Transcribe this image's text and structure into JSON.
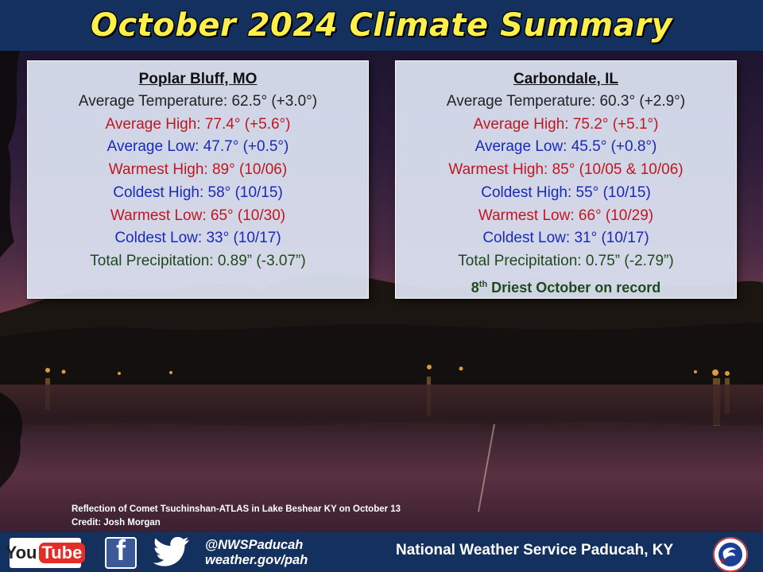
{
  "header": {
    "title": "October 2024 Climate Summary"
  },
  "left_panel": {
    "city": "Poplar Bluff, MO",
    "rows": [
      "Average Temperature: 62.5° (+3.0°)",
      "Average High: 77.4° (+5.6°)",
      "Average Low: 47.7° (+0.5°)",
      "Warmest High: 89° (10/06)",
      "Coldest High: 58° (10/15)",
      "Warmest  Low: 65° (10/30)",
      "Coldest Low: 33° (10/17)",
      "Total Precipitation: 0.89” (-3.07”)"
    ]
  },
  "right_panel": {
    "city": "Carbondale, IL",
    "rows": [
      "Average Temperature: 60.3° (+2.9°)",
      "Average High: 75.2° (+5.1°)",
      "Average Low: 45.5° (+0.8°)",
      "Warmest High: 85° (10/05 & 10/06)",
      "Coldest High: 55° (10/15)",
      "Warmest  Low: 66° (10/29)",
      "Coldest Low: 31° (10/17)",
      "Total Precipitation: 0.75” (-2.79”)"
    ],
    "note_rank": "8",
    "note_suffix": "th",
    "note_text": " Driest October on record"
  },
  "colors": {
    "neutral": "#222222",
    "high": "#c0171f",
    "low": "#1a2ab8",
    "precip": "#1f4a1c",
    "title": "#ffef4a",
    "bar": "#13305e"
  },
  "caption": {
    "line1": "Reflection of Comet Tsuchinshan-ATLAS in Lake Beshear KY on October 13",
    "line2": "Credit:  Josh Morgan"
  },
  "footer": {
    "youtube_you": "You",
    "youtube_tube": "Tube",
    "facebook_glyph": "f",
    "handle": "@NWSPaducah",
    "website": "weather.gov/pah",
    "org": "National Weather Service Paducah, KY",
    "icons": [
      "youtube-icon",
      "facebook-icon",
      "twitter-icon",
      "nws-logo"
    ]
  }
}
